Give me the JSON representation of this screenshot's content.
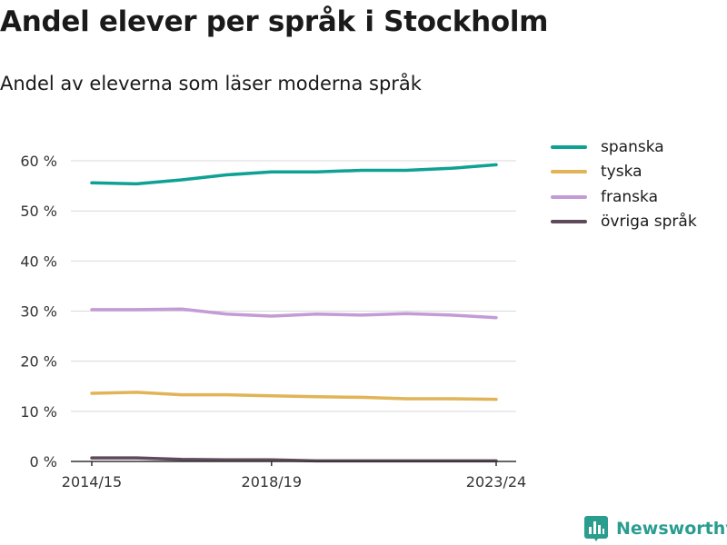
{
  "title": "Andel elever per språk i Stockholm",
  "subtitle": "Andel av eleverna som läser moderna språk",
  "brand": {
    "name": "Newsworthy",
    "icon": "bar-chart-logo-icon"
  },
  "chart_data": {
    "type": "line",
    "x": [
      "2014/15",
      "2015/16",
      "2016/17",
      "2017/18",
      "2018/19",
      "2019/20",
      "2020/21",
      "2021/22",
      "2022/23",
      "2023/24"
    ],
    "x_tick_labels": [
      "2014/15",
      "2018/19",
      "2023/24"
    ],
    "y_ticks": [
      0,
      10,
      20,
      30,
      40,
      50,
      60
    ],
    "y_tick_labels": [
      "0 %",
      "10 %",
      "20 %",
      "30 %",
      "40 %",
      "50 %",
      "60 %"
    ],
    "ylim": [
      0,
      62
    ],
    "grid": true,
    "legend": "right",
    "series": [
      {
        "name": "spanska",
        "color": "#0fa193",
        "values": [
          55.6,
          55.4,
          56.2,
          57.2,
          57.8,
          57.8,
          58.1,
          58.1,
          58.5,
          59.2
        ]
      },
      {
        "name": "tyska",
        "color": "#e0b457",
        "values": [
          13.6,
          13.8,
          13.3,
          13.3,
          13.1,
          12.9,
          12.8,
          12.5,
          12.5,
          12.4
        ]
      },
      {
        "name": "franska",
        "color": "#c39bd6",
        "values": [
          30.3,
          30.3,
          30.4,
          29.4,
          29.0,
          29.4,
          29.2,
          29.5,
          29.2,
          28.7
        ]
      },
      {
        "name": "övriga språk",
        "color": "#5f4a5c",
        "values": [
          0.7,
          0.7,
          0.4,
          0.3,
          0.3,
          0.1,
          0.1,
          0.1,
          0.1,
          0.1
        ]
      }
    ]
  }
}
